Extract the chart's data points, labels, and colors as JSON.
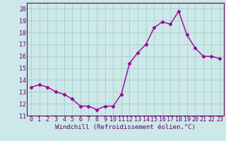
{
  "x": [
    0,
    1,
    2,
    3,
    4,
    5,
    6,
    7,
    8,
    9,
    10,
    11,
    12,
    13,
    14,
    15,
    16,
    17,
    18,
    19,
    20,
    21,
    22,
    23
  ],
  "y": [
    13.4,
    13.6,
    13.4,
    13.0,
    12.8,
    12.4,
    11.8,
    11.8,
    11.5,
    11.8,
    11.8,
    12.8,
    15.4,
    16.3,
    17.0,
    18.4,
    18.9,
    18.7,
    19.8,
    17.8,
    16.7,
    16.0,
    16.0,
    15.8
  ],
  "line_color": "#990099",
  "marker": "D",
  "markersize": 2.5,
  "linewidth": 1.0,
  "xlabel": "Windchill (Refroidissement éolien,°C)",
  "xlabel_fontsize": 6.5,
  "ylim": [
    11,
    20.5
  ],
  "xlim": [
    -0.5,
    23.5
  ],
  "yticks": [
    11,
    12,
    13,
    14,
    15,
    16,
    17,
    18,
    19,
    20
  ],
  "xticks": [
    0,
    1,
    2,
    3,
    4,
    5,
    6,
    7,
    8,
    9,
    10,
    11,
    12,
    13,
    14,
    15,
    16,
    17,
    18,
    19,
    20,
    21,
    22,
    23
  ],
  "xtick_labels": [
    "0",
    "1",
    "2",
    "3",
    "4",
    "5",
    "6",
    "7",
    "8",
    "9",
    "10",
    "11",
    "12",
    "13",
    "14",
    "15",
    "16",
    "17",
    "18",
    "19",
    "20",
    "21",
    "22",
    "23"
  ],
  "background_color": "#cce8e8",
  "grid_color": "#aacccc",
  "tick_fontsize": 6.0,
  "tick_color": "#660066",
  "spine_color": "#660066"
}
